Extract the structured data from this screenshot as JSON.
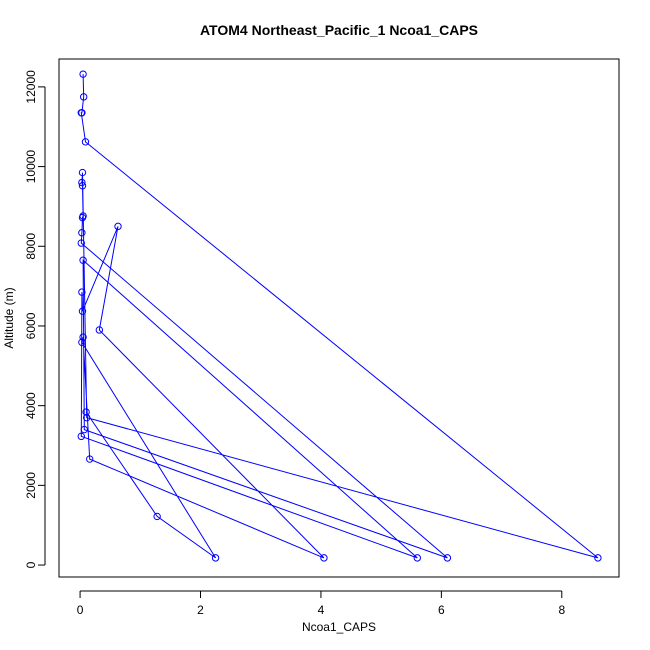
{
  "chart_data": {
    "type": "line",
    "title": "ATOM4 Northeast_Pacific_1 Ncoa1_CAPS",
    "xlabel": "Ncoa1_CAPS",
    "ylabel": "Altitude (m)",
    "xlim": [
      -0.35,
      8.95
    ],
    "ylim": [
      -300,
      12700
    ],
    "xticks": [
      0,
      2,
      4,
      6,
      8
    ],
    "yticks": [
      0,
      2000,
      4000,
      6000,
      8000,
      10000,
      12000
    ],
    "grid": false,
    "legend": "none",
    "series_color": "#0000ff",
    "points": [
      {
        "x": 0.05,
        "y": 12320
      },
      {
        "x": 0.06,
        "y": 11750
      },
      {
        "x": 0.03,
        "y": 11350
      },
      {
        "x": 0.02,
        "y": 11350
      },
      {
        "x": 0.09,
        "y": 10620
      },
      {
        "x": 8.6,
        "y": 180
      },
      {
        "x": 0.11,
        "y": 3700
      },
      {
        "x": 0.04,
        "y": 9850
      },
      {
        "x": 0.03,
        "y": 9600
      },
      {
        "x": 0.04,
        "y": 9520
      },
      {
        "x": 0.05,
        "y": 8760
      },
      {
        "x": 0.04,
        "y": 8720
      },
      {
        "x": 0.03,
        "y": 8340
      },
      {
        "x": 0.02,
        "y": 8080
      },
      {
        "x": 6.1,
        "y": 180
      },
      {
        "x": 0.07,
        "y": 3400
      },
      {
        "x": 0.05,
        "y": 7650
      },
      {
        "x": 5.6,
        "y": 180
      },
      {
        "x": 0.02,
        "y": 3230
      },
      {
        "x": 0.03,
        "y": 6850
      },
      {
        "x": 0.04,
        "y": 6370
      },
      {
        "x": 0.63,
        "y": 8500
      },
      {
        "x": 0.32,
        "y": 5900
      },
      {
        "x": 4.05,
        "y": 180
      },
      {
        "x": 0.16,
        "y": 2660
      },
      {
        "x": 0.05,
        "y": 5720
      },
      {
        "x": 0.03,
        "y": 5590
      },
      {
        "x": 2.25,
        "y": 180
      },
      {
        "x": 1.28,
        "y": 1220
      },
      {
        "x": 0.1,
        "y": 3840
      }
    ]
  }
}
